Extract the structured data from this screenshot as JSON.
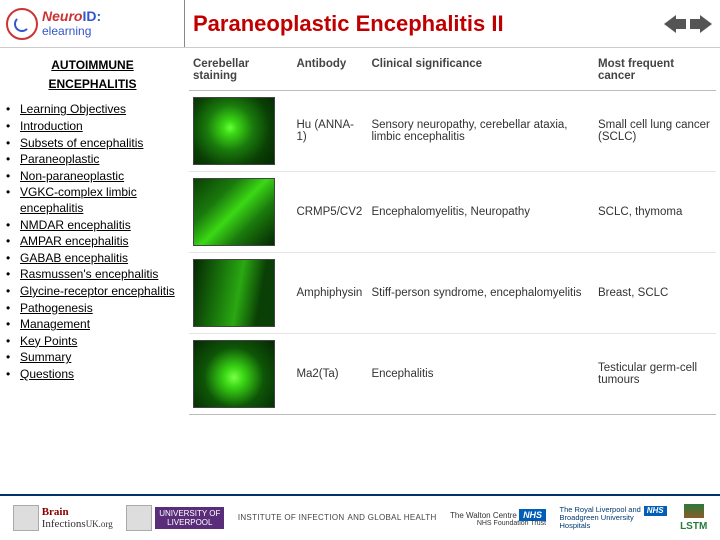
{
  "header": {
    "logo_main": "NeuroID:",
    "logo_sub": "elearning",
    "title": "Paraneoplastic Encephalitis II"
  },
  "sidebar": {
    "section_line1": "AUTOIMMUNE",
    "section_line2": "ENCEPHALITIS",
    "items": [
      "Learning Objectives",
      "Introduction",
      "Subsets of encephalitis",
      "Paraneoplastic",
      "Non-paraneoplastic",
      "VGKC-complex limbic encephalitis",
      "NMDAR encephalitis",
      "AMPAR encephalitis",
      "GABAB encephalitis",
      "Rasmussen's encephalitis",
      "Glycine-receptor encephalitis",
      "Pathogenesis",
      "Management",
      "Key Points",
      "Summary",
      "Questions"
    ]
  },
  "table": {
    "headers": [
      "Cerebellar staining",
      "Antibody",
      "Clinical significance",
      "Most frequent cancer"
    ],
    "rows": [
      {
        "antibody": "Hu (ANNA-1)",
        "sig": "Sensory neuropathy, cerebellar ataxia, limbic encephalitis",
        "cancer": "Small cell lung cancer (SCLC)"
      },
      {
        "antibody": "CRMP5/CV2",
        "sig": "Encephalomyelitis, Neuropathy",
        "cancer": "SCLC, thymoma"
      },
      {
        "antibody": "Amphiphysin",
        "sig": "Stiff-person syndrome, encephalomyelitis",
        "cancer": "Breast, SCLC"
      },
      {
        "antibody": "Ma2(Ta)",
        "sig": "Encephalitis",
        "cancer": "Testicular germ-cell tumours"
      }
    ]
  },
  "footer": {
    "brain1": "Brain",
    "brain2": "Infections",
    "brain3": "UK.org",
    "liver1": "UNIVERSITY OF",
    "liver2": "LIVERPOOL",
    "inst1": "INSTITUTE OF INFECTION",
    "inst2": "AND GLOBAL HEALTH",
    "walton": "The Walton Centre",
    "nhs": "NHS",
    "nhs_sub": "NHS Foundation Trust",
    "royal1": "The Royal Liverpool and",
    "royal2": "Broadgreen University Hospitals",
    "lstm": "LSTM"
  }
}
